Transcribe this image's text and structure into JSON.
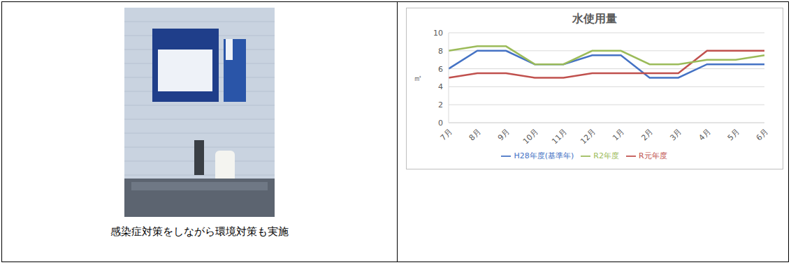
{
  "photo_caption": "感染症対策をしながら環境対策も実施",
  "chart_data": {
    "type": "line",
    "title": "水使用量",
    "y_label": "㎥",
    "categories": [
      "7月",
      "8月",
      "9月",
      "10月",
      "11月",
      "12月",
      "1月",
      "2月",
      "3月",
      "4月",
      "5月",
      "6月"
    ],
    "series": [
      {
        "name": "H28年度(基準年)",
        "color": "#4472c4",
        "values": [
          6,
          8,
          8,
          6.5,
          6.5,
          7.5,
          7.5,
          5,
          5,
          6.5,
          6.5,
          6.5
        ]
      },
      {
        "name": "R元年度",
        "color": "#c0504d",
        "values": [
          5,
          5.5,
          5.5,
          5,
          5,
          5.5,
          5.5,
          5.5,
          5.5,
          8,
          8,
          8
        ]
      },
      {
        "name": "R2年度",
        "color": "#9bbb59",
        "values": [
          8,
          8.5,
          8.5,
          6.5,
          6.5,
          8,
          8,
          6.5,
          6.5,
          7,
          7,
          7.5
        ]
      }
    ],
    "ylim": [
      0,
      10
    ],
    "yticks": [
      0,
      2,
      4,
      6,
      8,
      10
    ],
    "grid": true,
    "legend": "bottom"
  }
}
